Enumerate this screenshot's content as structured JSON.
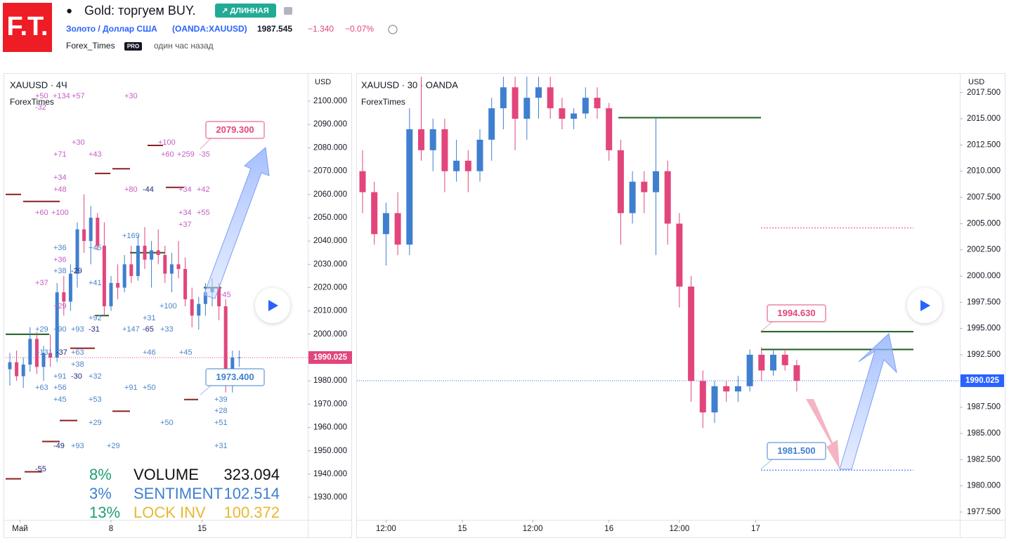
{
  "header": {
    "logo": "F.T.",
    "title": "Gold: торгуем BUY.",
    "badge": "↗ ДЛИННАЯ",
    "symbol": "Золото / Доллар США",
    "symbol_code": "(OANDA:XAUUSD)",
    "price": 1987.545,
    "change": "−1.340",
    "change_pct": "−0.07%",
    "author": "Forex_Times",
    "author_badge": "PRO",
    "time": "один час назад"
  },
  "chart_data": [
    {
      "type": "candlestick",
      "title": "XAUUSD · 4Ч",
      "subtitle": "ForexTimes",
      "y_axis_label": "USD",
      "up_color": "#3f7fd0",
      "down_color": "#e2457c",
      "ylim": [
        1920.4,
        2111.75
      ],
      "yticks": [
        {
          "value": 1930,
          "label": "1930.000"
        },
        {
          "value": 1940,
          "label": "1940.000"
        },
        {
          "value": 1950,
          "label": "1950.000"
        },
        {
          "value": 1960,
          "label": "1960.000"
        },
        {
          "value": 1970,
          "label": "1970.000"
        },
        {
          "value": 1980,
          "label": "1980.000"
        },
        {
          "value": 1990,
          "label": "1990.000"
        },
        {
          "value": 2000,
          "label": "2000.000"
        },
        {
          "value": 2010,
          "label": "2010.000"
        },
        {
          "value": 2020,
          "label": "2020.000"
        },
        {
          "value": 2030,
          "label": "2030.000"
        },
        {
          "value": 2040,
          "label": "2040.000"
        },
        {
          "value": 2050,
          "label": "2050.000"
        },
        {
          "value": 2060,
          "label": "2060.000"
        },
        {
          "value": 2070,
          "label": "2070.000"
        },
        {
          "value": 2080,
          "label": "2080.000"
        },
        {
          "value": 2090,
          "label": "2090.000"
        },
        {
          "value": 2100,
          "label": "2100.000"
        }
      ],
      "xticks": [
        {
          "value": 1.5,
          "label": "Май"
        },
        {
          "value": 15,
          "label": "8"
        },
        {
          "value": 28.5,
          "label": "15"
        }
      ],
      "candles": [
        [
          1985,
          1992,
          1978,
          1988
        ],
        [
          1988,
          1993,
          1980,
          1982
        ],
        [
          1982,
          1990,
          1977,
          1987
        ],
        [
          1987,
          2003,
          1984,
          1998
        ],
        [
          1998,
          2001,
          1983,
          1986
        ],
        [
          1986,
          1995,
          1980,
          1992
        ],
        [
          1992,
          2000,
          1986,
          1990
        ],
        [
          1990,
          2022,
          1988,
          2018
        ],
        [
          2018,
          2025,
          2008,
          2014
        ],
        [
          2014,
          2030,
          2010,
          2026
        ],
        [
          2026,
          2048,
          2020,
          2045
        ],
        [
          2045,
          2060,
          2035,
          2040
        ],
        [
          2040,
          2055,
          2030,
          2050
        ],
        [
          2050,
          2052,
          2036,
          2038
        ],
        [
          2038,
          2048,
          2008,
          2012
        ],
        [
          2012,
          2025,
          2010,
          2022
        ],
        [
          2022,
          2030,
          2015,
          2020
        ],
        [
          2020,
          2034,
          2018,
          2030
        ],
        [
          2030,
          2038,
          2022,
          2025
        ],
        [
          2025,
          2042,
          2023,
          2038
        ],
        [
          2038,
          2046,
          2028,
          2032
        ],
        [
          2032,
          2040,
          2020,
          2036
        ],
        [
          2036,
          2045,
          2030,
          2034
        ],
        [
          2034,
          2038,
          2022,
          2026
        ],
        [
          2026,
          2035,
          2018,
          2030
        ],
        [
          2030,
          2040,
          2024,
          2028
        ],
        [
          2028,
          2033,
          2012,
          2015
        ],
        [
          2015,
          2020,
          2003,
          2008
        ],
        [
          2008,
          2016,
          2002,
          2013
        ],
        [
          2013,
          2022,
          2008,
          2018
        ],
        [
          2018,
          2024,
          2012,
          2020
        ],
        [
          2020,
          2022,
          2006,
          2012
        ],
        [
          2012,
          2015,
          1975,
          1978
        ],
        [
          1978,
          1993,
          1975,
          1990
        ],
        [
          1990,
          1993,
          1986,
          1990.025
        ]
      ],
      "last_price": 1990.025,
      "last_price_color": "#e2457c",
      "levels": [
        {
          "value": 2060,
          "color": "#8b2020"
        },
        {
          "value": 2057,
          "color": "#8b2020"
        },
        {
          "value": 2081,
          "color": "#8b2020"
        },
        {
          "value": 2071,
          "color": "#8b2020"
        },
        {
          "value": 2069,
          "color": "#8b2020"
        },
        {
          "value": 2063,
          "color": "#8b2020"
        },
        {
          "value": 2035,
          "color": "#1b5e20"
        },
        {
          "value": 2020,
          "color": "#1b5e20"
        },
        {
          "value": 2008,
          "color": "#1b5e20"
        },
        {
          "value": 2000,
          "color": "#1b5e20"
        },
        {
          "value": 1994,
          "color": "#8b2020"
        },
        {
          "value": 1972,
          "color": "#8b2020"
        },
        {
          "value": 1967,
          "color": "#8b2020"
        },
        {
          "value": 1963,
          "color": "#8b2020"
        },
        {
          "value": 1954,
          "color": "#8b2020"
        },
        {
          "value": 1941,
          "color": "#8b2020"
        },
        {
          "value": 1938,
          "color": "#8b2020"
        }
      ],
      "callouts": [
        {
          "value": 2079.3,
          "label": "2079.300",
          "color": "#e2457c"
        },
        {
          "value": 1973.4,
          "label": "1973.400",
          "color": "#3f7fd0"
        }
      ],
      "annotations": [
        {
          "color": "#c35fc4",
          "texts": [
            "+50",
            "+134",
            "+57",
            "+30",
            "-32",
            "+30",
            "+71",
            "+43",
            "+100",
            "+60",
            "+259",
            "-35",
            "+34",
            "+48",
            "+80",
            "+34",
            "+42",
            "+60",
            "+100",
            "+34",
            "+55",
            "+37",
            "+37",
            "+36",
            "+29",
            "+45"
          ]
        },
        {
          "color": "#4b84c8",
          "texts": [
            "+36",
            "+38",
            "+169",
            "+45",
            "+41",
            "+100",
            "+92",
            "+31",
            "+29",
            "+90",
            "+93",
            "+147",
            "+33",
            "+131",
            "+63",
            "+46",
            "+45",
            "+38",
            "+91",
            "+32",
            "+63",
            "+56",
            "+91",
            "+50",
            "+45",
            "+53",
            "+39",
            "+28",
            "+29",
            "+50",
            "+51",
            "+93",
            "+29",
            "+31"
          ]
        },
        {
          "color": "#1c2a7a",
          "texts": [
            "-44",
            "-29",
            "-31",
            "-65",
            "-37",
            "-30",
            "-49",
            "-55"
          ]
        }
      ],
      "stats": [
        {
          "pct": "8%",
          "pct_color": "#1e9e78",
          "name": "VOLUME",
          "value": 323.094,
          "color": "#111111"
        },
        {
          "pct": "3%",
          "pct_color": "#3f7fd0",
          "name": "SENTIMENT",
          "value": 102.514,
          "color": "#3f7fd0"
        },
        {
          "pct": "13%",
          "pct_color": "#1e9e78",
          "name": "LOCK INV",
          "value": 100.372,
          "color": "#e8b830"
        }
      ]
    },
    {
      "type": "candlestick",
      "title": "XAUUSD · 30 · OANDA",
      "subtitle": "ForexTimes",
      "y_axis_label": "USD",
      "up_color": "#3f7fd0",
      "down_color": "#e2457c",
      "ylim": [
        1976.76,
        2019.29
      ],
      "yticks": [
        {
          "value": 1977.5,
          "label": "1977.500"
        },
        {
          "value": 1980,
          "label": "1980.000"
        },
        {
          "value": 1982.5,
          "label": "1982.500"
        },
        {
          "value": 1985,
          "label": "1985.000"
        },
        {
          "value": 1987.5,
          "label": "1987.500"
        },
        {
          "value": 1990,
          "label": "1990.000"
        },
        {
          "value": 1992.5,
          "label": "1992.500"
        },
        {
          "value": 1995,
          "label": "1995.000"
        },
        {
          "value": 1997.5,
          "label": "1997.500"
        },
        {
          "value": 2000,
          "label": "2000.000"
        },
        {
          "value": 2002.5,
          "label": "2002.500"
        },
        {
          "value": 2005,
          "label": "2005.000"
        },
        {
          "value": 2007.5,
          "label": "2007.500"
        },
        {
          "value": 2010,
          "label": "2010.000"
        },
        {
          "value": 2012.5,
          "label": "2012.500"
        },
        {
          "value": 2015,
          "label": "2015.000"
        },
        {
          "value": 2017.5,
          "label": "2017.500"
        }
      ],
      "xticks": [
        {
          "value": 2,
          "label": "12:00"
        },
        {
          "value": 8.5,
          "label": "15"
        },
        {
          "value": 14.5,
          "label": "12:00"
        },
        {
          "value": 21,
          "label": "16"
        },
        {
          "value": 27,
          "label": "12:00"
        },
        {
          "value": 33.5,
          "label": "17"
        }
      ],
      "candles": [
        [
          2010,
          2012,
          2006,
          2008
        ],
        [
          2008,
          2009,
          2003,
          2004
        ],
        [
          2004,
          2007,
          2001,
          2006
        ],
        [
          2006,
          2008,
          2002,
          2003
        ],
        [
          2003,
          2016,
          2002,
          2014
        ],
        [
          2014,
          2019,
          2011,
          2012
        ],
        [
          2012,
          2015,
          2010,
          2014
        ],
        [
          2014,
          2015,
          2008,
          2010
        ],
        [
          2010,
          2013,
          2009,
          2011
        ],
        [
          2011,
          2012,
          2008,
          2010
        ],
        [
          2010,
          2014,
          2009,
          2013
        ],
        [
          2013,
          2017,
          2011,
          2016
        ],
        [
          2016,
          2019,
          2014,
          2018
        ],
        [
          2018,
          2019,
          2012,
          2015
        ],
        [
          2015,
          2019,
          2013,
          2017
        ],
        [
          2017,
          2019,
          2015,
          2018
        ],
        [
          2018,
          2019,
          2015,
          2016
        ],
        [
          2016,
          2017,
          2014,
          2015
        ],
        [
          2015,
          2016,
          2014,
          2015.5
        ],
        [
          2015.5,
          2018,
          2015,
          2017
        ],
        [
          2017,
          2018,
          2015,
          2016
        ],
        [
          2016,
          2016.5,
          2011,
          2012
        ],
        [
          2012,
          2013,
          2003,
          2006
        ],
        [
          2006,
          2010,
          2005,
          2009
        ],
        [
          2009,
          2010,
          2006,
          2008
        ],
        [
          2008,
          2015,
          2002,
          2010
        ],
        [
          2010,
          2011,
          2003,
          2005
        ],
        [
          2005,
          2006,
          1997,
          1999
        ],
        [
          1999,
          2000,
          1988,
          1990
        ],
        [
          1990,
          1991,
          1985.5,
          1987
        ],
        [
          1987,
          1990,
          1986,
          1989.5
        ],
        [
          1989.5,
          1990,
          1988,
          1989
        ],
        [
          1989,
          1990.5,
          1988,
          1989.5
        ],
        [
          1989.5,
          1993,
          1989,
          1992.5
        ],
        [
          1992.5,
          1993.2,
          1990,
          1991
        ],
        [
          1991,
          1993,
          1990.5,
          1992.5
        ],
        [
          1992.5,
          1993,
          1991,
          1991.5
        ],
        [
          1991.5,
          1992,
          1989,
          1990.025
        ]
      ],
      "last_price": 1990.025,
      "last_price_color": "#2962ff",
      "levels": [
        {
          "value": 2015.1,
          "color": "#1b5e20"
        },
        {
          "value": 2004.6,
          "color": "#e2457c",
          "dashed": true
        },
        {
          "value": 1994.7,
          "color": "#1b5e20"
        },
        {
          "value": 1993,
          "color": "#1b5e20"
        },
        {
          "value": 1981.5,
          "color": "#2962ff",
          "dashed": true
        }
      ],
      "callouts": [
        {
          "value": 1994.63,
          "label": "1994.630",
          "color": "#e2457c"
        },
        {
          "value": 1981.5,
          "label": "1981.500",
          "color": "#3f7fd0"
        }
      ]
    }
  ]
}
